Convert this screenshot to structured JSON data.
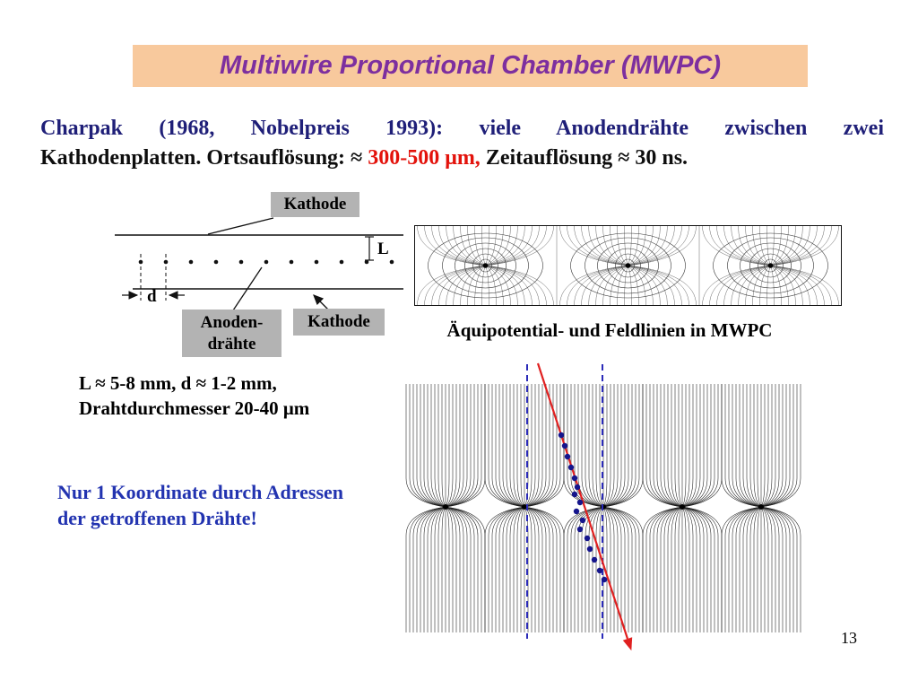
{
  "slide": {
    "title": "Multiwire Proportional Chamber (MWPC)",
    "page_number": "13"
  },
  "intro": {
    "seg1": "Charpak (1968, Nobelpreis 1993): viele Anodendrähte zwischen zwei",
    "seg2": "Kathodenplatten. Ortsauflösung: ≈ ",
    "seg3": "300-500 μm,",
    "seg4": " Zeitauflösung ≈ 30 ns."
  },
  "schematic": {
    "label_cathode_top": "Kathode",
    "label_anode_line1": "Anoden-",
    "label_anode_line2": "drähte",
    "label_cathode_bottom": "Kathode",
    "dim_gap": "L",
    "dim_pitch": "d"
  },
  "equipotential_caption": "Äquipotential- und Feldlinien in MWPC",
  "parameters": {
    "line1": "L ≈ 5-8 mm, d ≈ 1-2 mm,",
    "line2": "Drahtdurchmesser 20-40 μm"
  },
  "note": {
    "line1": "Nur 1 Koordinate durch Adressen",
    "line2": "der getroffenen Drähte!"
  },
  "colors": {
    "title_bg": "#f8c99d",
    "title_text": "#7d2f9f",
    "intro_blue": "#1f1f78",
    "intro_black": "#0d0d0d",
    "highlight_red": "#e3120b",
    "note_blue": "#2233b0",
    "label_bg": "#b3b3b3",
    "track_red": "#e02020",
    "dash_blue": "#2a2ab8",
    "dot_blue": "#15158c"
  }
}
